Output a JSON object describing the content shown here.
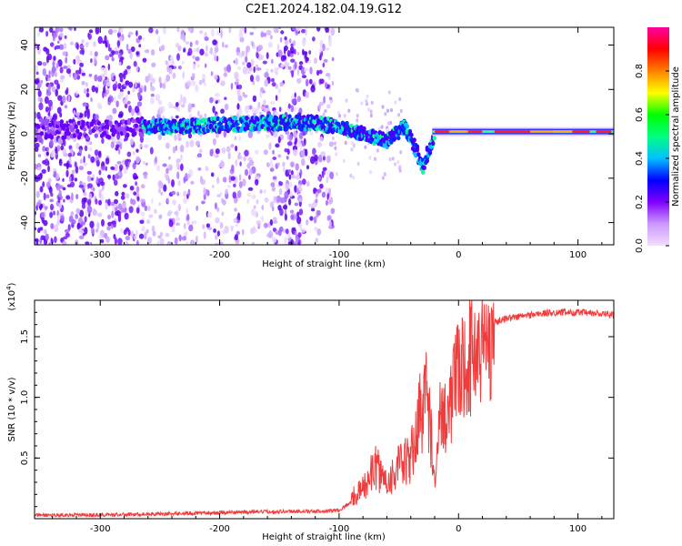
{
  "figure": {
    "title": "C2E1.2024.182.04.19.G12"
  },
  "chart_data": [
    {
      "type": "heatmap",
      "title": "",
      "xlabel": "Height of straight line (km)",
      "ylabel": "Frequency (Hz)",
      "xlim": [
        -355,
        130
      ],
      "ylim": [
        -50,
        48
      ],
      "x_ticks": [
        -300,
        -200,
        -100,
        0,
        100
      ],
      "y_ticks": [
        -40,
        -20,
        0,
        20,
        40
      ],
      "grid": false,
      "colorbar": {
        "label": "Normalized spectral amplitude",
        "range": [
          0,
          1
        ],
        "ticks": [
          0.0,
          0.2,
          0.4,
          0.6,
          0.8
        ],
        "colormap": [
          "#f3ddff",
          "#cc99ff",
          "#8000ff",
          "#0000ff",
          "#00c0ff",
          "#00ff80",
          "#00ff00",
          "#ffff00",
          "#ff8000",
          "#ff0000",
          "#ff00a0"
        ]
      },
      "ridge": [
        {
          "x": -350,
          "y": 2
        },
        {
          "x": -300,
          "y": 2
        },
        {
          "x": -260,
          "y": 3
        },
        {
          "x": -200,
          "y": 4
        },
        {
          "x": -150,
          "y": 5
        },
        {
          "x": -120,
          "y": 5
        },
        {
          "x": -100,
          "y": 3
        },
        {
          "x": -80,
          "y": 0
        },
        {
          "x": -60,
          "y": -3
        },
        {
          "x": -45,
          "y": 3
        },
        {
          "x": -35,
          "y": -8
        },
        {
          "x": -30,
          "y": -15
        },
        {
          "x": -20,
          "y": 0
        },
        {
          "x": 0,
          "y": 1
        },
        {
          "x": 50,
          "y": 1
        },
        {
          "x": 100,
          "y": 1
        },
        {
          "x": 130,
          "y": 1
        }
      ]
    },
    {
      "type": "line",
      "title": "",
      "xlabel": "Height of straight line (km)",
      "ylabel": "SNR (10 * v/v)",
      "y_multiplier": "(x10",
      "y_multiplier_exp": "4",
      "y_multiplier_close": ")",
      "xlim": [
        -355,
        130
      ],
      "ylim": [
        0,
        1.8
      ],
      "x_ticks": [
        -300,
        -200,
        -100,
        0,
        100
      ],
      "y_ticks": [
        0.5,
        1.0,
        1.5
      ],
      "y_tick_labels": [
        "0.5",
        "1.0",
        "1.5"
      ],
      "grid": false,
      "color": "#f03c3c",
      "series": [
        {
          "x": [
            -355,
            -300,
            -250,
            -200,
            -150,
            -120,
            -100,
            -80,
            -70,
            -60,
            -50,
            -40,
            -30,
            -25,
            -20,
            -15,
            -10,
            -5,
            0,
            10,
            20,
            30,
            40,
            60,
            80,
            100,
            130
          ],
          "values": [
            0.03,
            0.03,
            0.04,
            0.05,
            0.06,
            0.06,
            0.07,
            0.2,
            0.35,
            0.25,
            0.35,
            0.4,
            0.8,
            0.8,
            0.2,
            1.0,
            0.9,
            1.1,
            1.3,
            1.45,
            1.55,
            1.62,
            1.65,
            1.68,
            1.7,
            1.7,
            1.68
          ]
        }
      ]
    }
  ]
}
